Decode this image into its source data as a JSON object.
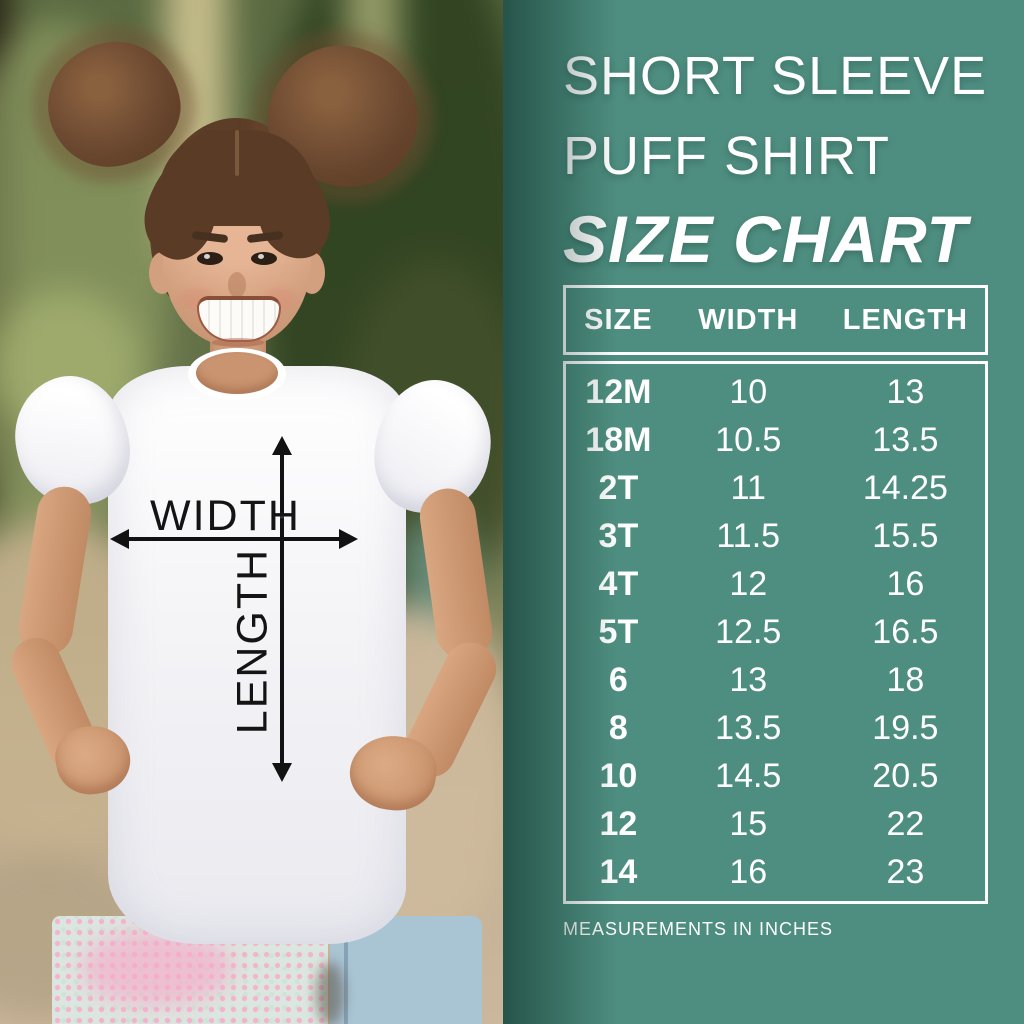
{
  "photo": {
    "annotations": {
      "width_label": "WIDTH",
      "length_label": "LENGTH"
    }
  },
  "panel": {
    "title_lines": [
      "SHORT SLEEVE",
      "PUFF SHIRT",
      "SIZE CHART"
    ],
    "footnote": "MEASUREMENTS IN INCHES"
  },
  "chart_data": {
    "type": "table",
    "title": "SHORT SLEEVE PUFF SHIRT SIZE CHART",
    "columns": [
      "SIZE",
      "WIDTH",
      "LENGTH"
    ],
    "units": "inches",
    "rows": [
      [
        "12M",
        "10",
        "13"
      ],
      [
        "18M",
        "10.5",
        "13.5"
      ],
      [
        "2T",
        "11",
        "14.25"
      ],
      [
        "3T",
        "11.5",
        "15.5"
      ],
      [
        "4T",
        "12",
        "16"
      ],
      [
        "5T",
        "12.5",
        "16.5"
      ],
      [
        "6",
        "13",
        "18"
      ],
      [
        "8",
        "13.5",
        "19.5"
      ],
      [
        "10",
        "14.5",
        "20.5"
      ],
      [
        "12",
        "15",
        "22"
      ],
      [
        "14",
        "16",
        "23"
      ]
    ]
  },
  "colors": {
    "panel_background": "#4E8E80",
    "panel_edge_shadow": "#06241F",
    "text": "#FFFFFF",
    "table_border": "#FFFFFF",
    "annotation_arrows": "#121212",
    "denim": "#A9C4D3",
    "sequin_pink": "#F6AAC8"
  }
}
